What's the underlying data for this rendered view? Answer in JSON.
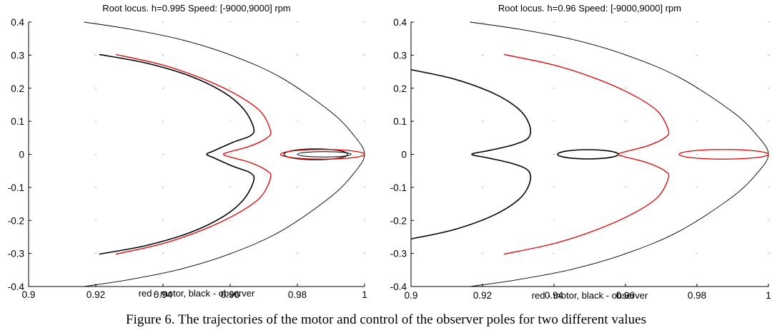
{
  "caption": "Figure 6. The trajectories of the motor and control of the observer poles for two different values",
  "chart_data": [
    {
      "type": "line",
      "title": "Root locus. h=0.995 Speed: [-9000,9000] rpm",
      "xlabel": "red - motor, black - observer",
      "ylabel": "",
      "xlim": [
        0.9,
        1.0
      ],
      "ylim": [
        -0.4,
        0.4
      ],
      "xticks": [
        "0.9",
        "0.92",
        "0.94",
        "0.96",
        "0.98",
        "1"
      ],
      "yticks": [
        "-0.4",
        "-0.3",
        "-0.2",
        "-0.1",
        "0",
        "0.1",
        "0.2",
        "0.3",
        "0.4"
      ],
      "grid": "dotted",
      "series": [
        {
          "color": "#000000",
          "width": 0.9,
          "x": [
            0.9165,
            0.93,
            0.945,
            0.96,
            0.975,
            0.99,
            0.997,
            1.0,
            0.997,
            0.99,
            0.975,
            0.96,
            0.945,
            0.93,
            0.9165
          ],
          "y": [
            0.4,
            0.379,
            0.348,
            0.301,
            0.233,
            0.128,
            0.055,
            0.0,
            -0.055,
            -0.128,
            -0.233,
            -0.301,
            -0.348,
            -0.379,
            -0.4
          ]
        },
        {
          "color": "#000000",
          "width": 1.6,
          "x": [
            0.921,
            0.935,
            0.948,
            0.958,
            0.964,
            0.967,
            0.966,
            0.961,
            0.955,
            0.953,
            0.955,
            0.961,
            0.966,
            0.967,
            0.964,
            0.958,
            0.948,
            0.935,
            0.921
          ],
          "y": [
            0.302,
            0.276,
            0.237,
            0.188,
            0.137,
            0.08,
            0.056,
            0.037,
            0.01,
            0.0,
            -0.01,
            -0.037,
            -0.056,
            -0.08,
            -0.137,
            -0.188,
            -0.237,
            -0.276,
            -0.302
          ]
        },
        {
          "color": "#e00000",
          "width": 1.3,
          "x": [
            0.926,
            0.94,
            0.952,
            0.962,
            0.969,
            0.972,
            0.971,
            0.966,
            0.96,
            0.958,
            0.96,
            0.966,
            0.971,
            0.972,
            0.969,
            0.962,
            0.952,
            0.94,
            0.926
          ],
          "y": [
            0.302,
            0.27,
            0.228,
            0.18,
            0.13,
            0.072,
            0.05,
            0.025,
            0.008,
            0.0,
            -0.008,
            -0.025,
            -0.05,
            -0.072,
            -0.13,
            -0.18,
            -0.228,
            -0.27,
            -0.302
          ]
        },
        {
          "ellipse": true,
          "color": "#000000",
          "width": 1.3,
          "cx": 0.9855,
          "cy": 0.0,
          "rx": 0.0095,
          "ry": 0.0165
        },
        {
          "ellipse": true,
          "color": "#e00000",
          "width": 1.3,
          "cx": 0.9875,
          "cy": 0.0,
          "rx": 0.0125,
          "ry": 0.0145
        },
        {
          "ellipse": true,
          "color": "#000000",
          "width": 1.0,
          "cx": 0.988,
          "cy": 0.0,
          "rx": 0.008,
          "ry": 0.008
        }
      ]
    },
    {
      "type": "line",
      "title": "Root locus. h=0.96 Speed: [-9000,9000] rpm",
      "xlabel": "red - motor, black - observer",
      "ylabel": "",
      "xlim": [
        0.9,
        1.0
      ],
      "ylim": [
        -0.4,
        0.4
      ],
      "xticks": [
        "0.9",
        "0.92",
        "0.94",
        "0.96",
        "0.98",
        "1"
      ],
      "yticks": [
        "-0.4",
        "-0.3",
        "-0.2",
        "-0.1",
        "0",
        "0.1",
        "0.2",
        "0.3",
        "0.4"
      ],
      "grid": "dotted",
      "series": [
        {
          "color": "#000000",
          "width": 0.9,
          "x": [
            0.9165,
            0.93,
            0.945,
            0.96,
            0.975,
            0.99,
            0.997,
            1.0,
            0.997,
            0.99,
            0.975,
            0.96,
            0.945,
            0.93,
            0.9165
          ],
          "y": [
            0.4,
            0.379,
            0.348,
            0.301,
            0.233,
            0.128,
            0.055,
            0.0,
            -0.055,
            -0.128,
            -0.233,
            -0.301,
            -0.348,
            -0.379,
            -0.4
          ]
        },
        {
          "color": "#000000",
          "width": 1.6,
          "x": [
            0.9,
            0.912,
            0.923,
            0.93,
            0.933,
            0.933,
            0.929,
            0.922,
            0.918,
            0.917,
            0.918,
            0.922,
            0.929,
            0.933,
            0.933,
            0.93,
            0.923,
            0.912,
            0.9
          ],
          "y": [
            0.256,
            0.228,
            0.185,
            0.138,
            0.093,
            0.052,
            0.03,
            0.012,
            0.004,
            0.0,
            -0.004,
            -0.012,
            -0.03,
            -0.052,
            -0.093,
            -0.138,
            -0.185,
            -0.228,
            -0.256
          ]
        },
        {
          "ellipse": true,
          "color": "#000000",
          "width": 1.6,
          "cx": 0.9495,
          "cy": 0.0,
          "rx": 0.0085,
          "ry": 0.014
        },
        {
          "color": "#e00000",
          "width": 1.3,
          "x": [
            0.926,
            0.94,
            0.952,
            0.962,
            0.969,
            0.972,
            0.971,
            0.966,
            0.96,
            0.958,
            0.96,
            0.966,
            0.971,
            0.972,
            0.969,
            0.962,
            0.952,
            0.94,
            0.926
          ],
          "y": [
            0.302,
            0.27,
            0.228,
            0.18,
            0.13,
            0.072,
            0.05,
            0.025,
            0.008,
            0.0,
            -0.008,
            -0.025,
            -0.05,
            -0.072,
            -0.13,
            -0.18,
            -0.228,
            -0.27,
            -0.302
          ]
        },
        {
          "ellipse": true,
          "color": "#e00000",
          "width": 1.3,
          "cx": 0.9875,
          "cy": 0.0,
          "rx": 0.0125,
          "ry": 0.0145
        }
      ]
    }
  ]
}
